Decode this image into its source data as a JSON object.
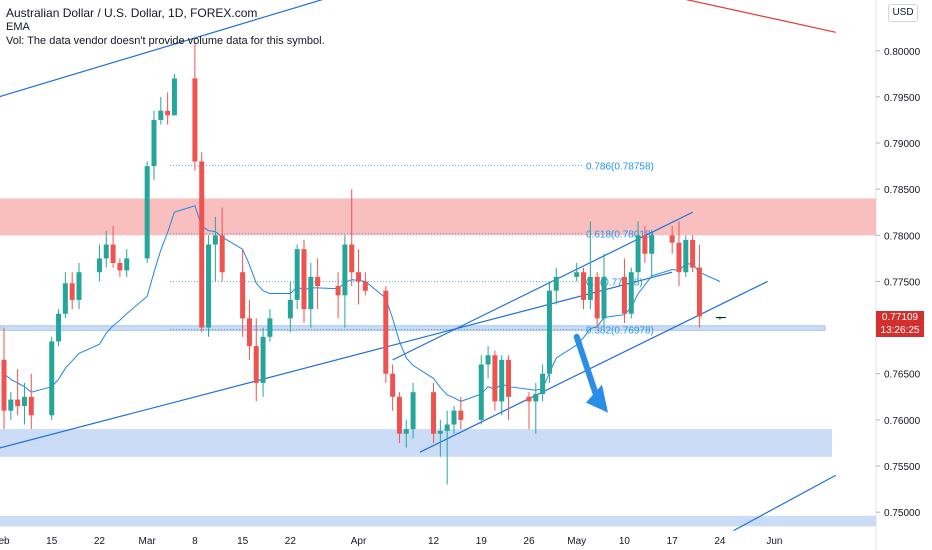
{
  "header": {
    "title": "Australian Dollar / U.S. Dollar, 1D, FOREX.com",
    "indicator": "EMA",
    "volume_note": "Vol: The data vendor doesn't provide volume data for this symbol."
  },
  "currency_button": "USD",
  "last_price": {
    "price": "0.77109",
    "countdown": "13:26:25"
  },
  "colors": {
    "up": "#26a69a",
    "down": "#ef5350",
    "trendline": "#1e6fd9",
    "ema": "#1e88e5",
    "resistance_zone": "#f8b3b3",
    "support_zone": "#c5d9f5",
    "fib_label": "#2196f3",
    "redline": "#e53935",
    "arrow": "#2a8de8"
  },
  "chart_data": {
    "type": "candlestick",
    "symbol": "AUDUSD",
    "timeframe": "1D",
    "y_axis": {
      "range": [
        0.7485,
        0.8055
      ],
      "ticks": [
        0.75,
        0.755,
        0.76,
        0.765,
        0.77,
        0.775,
        0.78,
        0.785,
        0.79,
        0.795,
        0.8
      ],
      "tick_labels": [
        "0.75000",
        "0.75500",
        "0.76000",
        "0.76500",
        "0.77000",
        "0.77500",
        "0.78000",
        "0.78500",
        "0.79000",
        "0.79500",
        "0.80000"
      ]
    },
    "x_axis": {
      "start_date": "2021-02-08",
      "tick_labels": [
        {
          "date": "2021-02-08",
          "label": "eb"
        },
        {
          "date": "2021-02-15",
          "label": "15"
        },
        {
          "date": "2021-02-22",
          "label": "22"
        },
        {
          "date": "2021-03-01",
          "label": "Mar"
        },
        {
          "date": "2021-03-08",
          "label": "8"
        },
        {
          "date": "2021-03-15",
          "label": "15"
        },
        {
          "date": "2021-03-22",
          "label": "22"
        },
        {
          "date": "2021-04-01",
          "label": "Apr"
        },
        {
          "date": "2021-04-12",
          "label": "12"
        },
        {
          "date": "2021-04-19",
          "label": "19"
        },
        {
          "date": "2021-04-26",
          "label": "26"
        },
        {
          "date": "2021-05-03",
          "label": "May"
        },
        {
          "date": "2021-05-10",
          "label": "10"
        },
        {
          "date": "2021-05-17",
          "label": "17"
        },
        {
          "date": "2021-05-24",
          "label": "24"
        },
        {
          "date": "2021-06-01",
          "label": "Jun"
        }
      ]
    },
    "candles": [
      {
        "date": "2021-02-08",
        "o": 0.7665,
        "h": 0.77,
        "l": 0.759,
        "c": 0.761
      },
      {
        "date": "2021-02-09",
        "o": 0.761,
        "h": 0.763,
        "l": 0.76,
        "c": 0.7622
      },
      {
        "date": "2021-02-10",
        "o": 0.7622,
        "h": 0.7655,
        "l": 0.7605,
        "c": 0.7615
      },
      {
        "date": "2021-02-11",
        "o": 0.7615,
        "h": 0.764,
        "l": 0.7595,
        "c": 0.7625
      },
      {
        "date": "2021-02-12",
        "o": 0.7625,
        "h": 0.765,
        "l": 0.759,
        "c": 0.7605
      },
      {
        "date": "2021-02-15",
        "o": 0.7605,
        "h": 0.769,
        "l": 0.76,
        "c": 0.7685
      },
      {
        "date": "2021-02-16",
        "o": 0.7685,
        "h": 0.772,
        "l": 0.768,
        "c": 0.7715
      },
      {
        "date": "2021-02-17",
        "o": 0.7715,
        "h": 0.776,
        "l": 0.771,
        "c": 0.7748
      },
      {
        "date": "2021-02-18",
        "o": 0.7748,
        "h": 0.776,
        "l": 0.772,
        "c": 0.773
      },
      {
        "date": "2021-02-19",
        "o": 0.773,
        "h": 0.777,
        "l": 0.772,
        "c": 0.776
      },
      {
        "date": "2021-02-22",
        "o": 0.776,
        "h": 0.779,
        "l": 0.775,
        "c": 0.7775
      },
      {
        "date": "2021-02-23",
        "o": 0.7775,
        "h": 0.7805,
        "l": 0.7765,
        "c": 0.779
      },
      {
        "date": "2021-02-24",
        "o": 0.779,
        "h": 0.781,
        "l": 0.7765,
        "c": 0.777
      },
      {
        "date": "2021-02-25",
        "o": 0.777,
        "h": 0.7775,
        "l": 0.7755,
        "c": 0.7762
      },
      {
        "date": "2021-02-26",
        "o": 0.7762,
        "h": 0.7785,
        "l": 0.7755,
        "c": 0.7775
      },
      {
        "date": "2021-03-01",
        "o": 0.7775,
        "h": 0.788,
        "l": 0.777,
        "c": 0.7875
      },
      {
        "date": "2021-03-02",
        "o": 0.7875,
        "h": 0.7935,
        "l": 0.786,
        "c": 0.7925
      },
      {
        "date": "2021-03-03",
        "o": 0.7925,
        "h": 0.795,
        "l": 0.792,
        "c": 0.7935
      },
      {
        "date": "2021-03-04",
        "o": 0.7935,
        "h": 0.7955,
        "l": 0.792,
        "c": 0.793
      },
      {
        "date": "2021-03-05",
        "o": 0.793,
        "h": 0.7975,
        "l": 0.793,
        "c": 0.797
      },
      {
        "date": "2021-03-08",
        "o": 0.797,
        "h": 0.801,
        "l": 0.787,
        "c": 0.788
      },
      {
        "date": "2021-03-09",
        "o": 0.788,
        "h": 0.789,
        "l": 0.7695,
        "c": 0.77
      },
      {
        "date": "2021-03-10",
        "o": 0.77,
        "h": 0.78,
        "l": 0.769,
        "c": 0.779
      },
      {
        "date": "2021-03-11",
        "o": 0.779,
        "h": 0.782,
        "l": 0.775,
        "c": 0.78
      },
      {
        "date": "2021-03-12",
        "o": 0.78,
        "h": 0.783,
        "l": 0.775,
        "c": 0.776
      },
      {
        "date": "2021-03-15",
        "o": 0.776,
        "h": 0.7785,
        "l": 0.769,
        "c": 0.771
      },
      {
        "date": "2021-03-16",
        "o": 0.771,
        "h": 0.773,
        "l": 0.7665,
        "c": 0.768
      },
      {
        "date": "2021-03-17",
        "o": 0.768,
        "h": 0.771,
        "l": 0.762,
        "c": 0.764
      },
      {
        "date": "2021-03-18",
        "o": 0.764,
        "h": 0.77,
        "l": 0.7625,
        "c": 0.769
      },
      {
        "date": "2021-03-19",
        "o": 0.769,
        "h": 0.772,
        "l": 0.7685,
        "c": 0.771
      },
      {
        "date": "2021-03-22",
        "o": 0.771,
        "h": 0.775,
        "l": 0.7695,
        "c": 0.773
      },
      {
        "date": "2021-03-23",
        "o": 0.773,
        "h": 0.779,
        "l": 0.772,
        "c": 0.7785
      },
      {
        "date": "2021-03-24",
        "o": 0.7785,
        "h": 0.7795,
        "l": 0.7705,
        "c": 0.772
      },
      {
        "date": "2021-03-25",
        "o": 0.772,
        "h": 0.777,
        "l": 0.77,
        "c": 0.7755
      },
      {
        "date": "2021-03-26",
        "o": 0.7755,
        "h": 0.7775,
        "l": 0.772,
        "c": 0.7745
      },
      {
        "date": "2021-03-29",
        "o": 0.7745,
        "h": 0.776,
        "l": 0.771,
        "c": 0.7735
      },
      {
        "date": "2021-03-30",
        "o": 0.7735,
        "h": 0.78,
        "l": 0.77,
        "c": 0.779
      },
      {
        "date": "2021-03-31",
        "o": 0.779,
        "h": 0.785,
        "l": 0.7745,
        "c": 0.776
      },
      {
        "date": "2021-04-01",
        "o": 0.776,
        "h": 0.7785,
        "l": 0.7725,
        "c": 0.775
      },
      {
        "date": "2021-04-02",
        "o": 0.775,
        "h": 0.776,
        "l": 0.7735,
        "c": 0.774
      },
      {
        "date": "2021-04-05",
        "o": 0.774,
        "h": 0.7745,
        "l": 0.764,
        "c": 0.765
      },
      {
        "date": "2021-04-06",
        "o": 0.765,
        "h": 0.766,
        "l": 0.761,
        "c": 0.7625
      },
      {
        "date": "2021-04-07",
        "o": 0.7625,
        "h": 0.763,
        "l": 0.7575,
        "c": 0.7585
      },
      {
        "date": "2021-04-08",
        "o": 0.7585,
        "h": 0.76,
        "l": 0.757,
        "c": 0.759
      },
      {
        "date": "2021-04-09",
        "o": 0.759,
        "h": 0.764,
        "l": 0.758,
        "c": 0.763
      },
      {
        "date": "2021-04-12",
        "o": 0.763,
        "h": 0.764,
        "l": 0.7575,
        "c": 0.7585
      },
      {
        "date": "2021-04-13",
        "o": 0.7585,
        "h": 0.76,
        "l": 0.756,
        "c": 0.7588
      },
      {
        "date": "2021-04-14",
        "o": 0.7588,
        "h": 0.761,
        "l": 0.753,
        "c": 0.7595
      },
      {
        "date": "2021-04-15",
        "o": 0.7595,
        "h": 0.7615,
        "l": 0.7585,
        "c": 0.761
      },
      {
        "date": "2021-04-16",
        "o": 0.761,
        "h": 0.7625,
        "l": 0.759,
        "c": 0.76
      },
      {
        "date": "2021-04-19",
        "o": 0.76,
        "h": 0.767,
        "l": 0.7595,
        "c": 0.766
      },
      {
        "date": "2021-04-20",
        "o": 0.766,
        "h": 0.768,
        "l": 0.7645,
        "c": 0.767
      },
      {
        "date": "2021-04-21",
        "o": 0.767,
        "h": 0.7675,
        "l": 0.761,
        "c": 0.762
      },
      {
        "date": "2021-04-22",
        "o": 0.762,
        "h": 0.767,
        "l": 0.7605,
        "c": 0.7665
      },
      {
        "date": "2021-04-23",
        "o": 0.7665,
        "h": 0.767,
        "l": 0.76,
        "c": 0.7625
      },
      {
        "date": "2021-04-26",
        "o": 0.7625,
        "h": 0.763,
        "l": 0.759,
        "c": 0.762
      },
      {
        "date": "2021-04-27",
        "o": 0.762,
        "h": 0.764,
        "l": 0.7585,
        "c": 0.7628
      },
      {
        "date": "2021-04-28",
        "o": 0.7628,
        "h": 0.766,
        "l": 0.762,
        "c": 0.765
      },
      {
        "date": "2021-04-29",
        "o": 0.765,
        "h": 0.775,
        "l": 0.764,
        "c": 0.774
      },
      {
        "date": "2021-04-30",
        "o": 0.774,
        "h": 0.7765,
        "l": 0.7725,
        "c": 0.7755
      },
      {
        "date": "2021-05-03",
        "o": 0.7755,
        "h": 0.777,
        "l": 0.775,
        "c": 0.776
      },
      {
        "date": "2021-05-04",
        "o": 0.776,
        "h": 0.7765,
        "l": 0.772,
        "c": 0.773
      },
      {
        "date": "2021-05-05",
        "o": 0.773,
        "h": 0.7815,
        "l": 0.772,
        "c": 0.7755
      },
      {
        "date": "2021-05-06",
        "o": 0.7755,
        "h": 0.776,
        "l": 0.77,
        "c": 0.771
      },
      {
        "date": "2021-05-07",
        "o": 0.771,
        "h": 0.778,
        "l": 0.77,
        "c": 0.7755
      },
      {
        "date": "2021-05-10",
        "o": 0.7755,
        "h": 0.7775,
        "l": 0.7705,
        "c": 0.7715
      },
      {
        "date": "2021-05-11",
        "o": 0.7715,
        "h": 0.7765,
        "l": 0.771,
        "c": 0.776
      },
      {
        "date": "2021-05-12",
        "o": 0.776,
        "h": 0.7815,
        "l": 0.775,
        "c": 0.78
      },
      {
        "date": "2021-05-13",
        "o": 0.78,
        "h": 0.781,
        "l": 0.777,
        "c": 0.778
      },
      {
        "date": "2021-05-14",
        "o": 0.778,
        "h": 0.7805,
        "l": 0.7755,
        "c": 0.78
      },
      {
        "date": "2021-05-17",
        "o": 0.78,
        "h": 0.781,
        "l": 0.778,
        "c": 0.7792
      },
      {
        "date": "2021-05-18",
        "o": 0.7792,
        "h": 0.7815,
        "l": 0.7745,
        "c": 0.776
      },
      {
        "date": "2021-05-19",
        "o": 0.776,
        "h": 0.78,
        "l": 0.7755,
        "c": 0.7795
      },
      {
        "date": "2021-05-20",
        "o": 0.7795,
        "h": 0.78,
        "l": 0.776,
        "c": 0.7765
      },
      {
        "date": "2021-05-21",
        "o": 0.7765,
        "h": 0.779,
        "l": 0.77,
        "c": 0.7712
      },
      {
        "date": "2021-05-24",
        "o": 0.7711,
        "h": 0.7712,
        "l": 0.7708,
        "c": 0.7711
      }
    ],
    "ema": [
      0.765,
      0.7644,
      0.764,
      0.7636,
      0.763,
      0.7636,
      0.7644,
      0.7656,
      0.7664,
      0.7672,
      0.7682,
      0.7694,
      0.7702,
      0.7708,
      0.7715,
      0.7734,
      0.776,
      0.7784,
      0.7803,
      0.7825,
      0.7832,
      0.781,
      0.7805,
      0.7804,
      0.7798,
      0.7785,
      0.7768,
      0.7748,
      0.774,
      0.7737,
      0.7737,
      0.7744,
      0.7741,
      0.7743,
      0.7743,
      0.7742,
      0.7749,
      0.7752,
      0.7751,
      0.775,
      0.7732,
      0.771,
      0.7685,
      0.7667,
      0.7659,
      0.7645,
      0.7635,
      0.7627,
      0.7624,
      0.762,
      0.7628,
      0.7636,
      0.7633,
      0.7639,
      0.7636,
      0.7633,
      0.7632,
      0.7634,
      0.7651,
      0.7667,
      0.7681,
      0.7689,
      0.7699,
      0.7701,
      0.7711,
      0.7714,
      0.7722,
      0.7737,
      0.7746,
      0.7756,
      0.7763,
      0.7762,
      0.7769,
      0.7769,
      0.776,
      0.775
    ],
    "zones": [
      {
        "name": "resistance",
        "from": 0.78,
        "to": 0.784
      },
      {
        "name": "support-lower",
        "from": 0.756,
        "to": 0.759
      },
      {
        "name": "support-mid",
        "from": 0.7697,
        "to": 0.7702
      },
      {
        "name": "support-bottom",
        "from": 0.7485,
        "to": 0.7496
      }
    ],
    "fibonacci": [
      {
        "ratio_label": "0.786(0.78758)",
        "price": 0.78758
      },
      {
        "ratio_label": "0.618(0.78018)",
        "price": 0.78018
      },
      {
        "ratio_label": "0.5(0.77498)",
        "price": 0.77498
      },
      {
        "ratio_label": "0.382(0.76978)",
        "price": 0.76978
      }
    ],
    "trendlines": [
      {
        "name": "upper-channel",
        "from": [
          "2021-02-05",
          0.7945
        ],
        "to": [
          "2021-03-31",
          0.8065
        ]
      },
      {
        "name": "long-rising",
        "from": [
          "2021-02-05",
          0.7565
        ],
        "to": [
          "2021-05-17",
          0.776
        ]
      },
      {
        "name": "rising-channel-top",
        "from": [
          "2021-04-06",
          0.7665
        ],
        "to": [
          "2021-05-20",
          0.7825
        ]
      },
      {
        "name": "rising-channel-bottom",
        "from": [
          "2021-04-10",
          0.7565
        ],
        "to": [
          "2021-05-31",
          0.775
        ]
      },
      {
        "name": "red-downtrend",
        "from": [
          "2021-05-07",
          0.8075
        ],
        "to": [
          "2021-06-10",
          0.802
        ]
      },
      {
        "name": "bottom-rising",
        "from": [
          "2021-05-26",
          0.748
        ],
        "to": [
          "2021-06-10",
          0.754
        ]
      }
    ],
    "projection_arrow": {
      "from": [
        "2021-05-03",
        0.769
      ],
      "to": [
        "2021-05-07",
        0.761
      ]
    }
  }
}
